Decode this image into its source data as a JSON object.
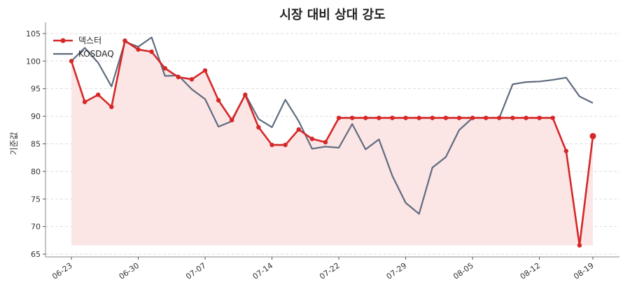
{
  "chart_data": {
    "type": "line",
    "title": "시장 대비 상대 강도",
    "xlabel": "",
    "ylabel": "기준값",
    "ylim": [
      64.5,
      106
    ],
    "y_ticks": [
      65,
      70,
      75,
      80,
      85,
      90,
      95,
      100,
      105
    ],
    "x_tick_labels": [
      "06-23",
      "06-30",
      "07-07",
      "07-14",
      "07-22",
      "07-29",
      "08-05",
      "08-12",
      "08-19"
    ],
    "x_tick_indices": [
      0,
      5,
      10,
      15,
      20,
      25,
      30,
      35,
      39
    ],
    "grid": "horizontal-dashed",
    "legend_position": "top-left",
    "shaded_area": "under-first-series",
    "colors": {
      "series1": "#d62728",
      "series2": "#5f6b7e",
      "fill": "#fbe5e5"
    },
    "series": [
      {
        "name": "덱스터",
        "markers": true,
        "values": [
          100,
          92.6,
          93.9,
          91.7,
          103.7,
          102.1,
          101.7,
          98.7,
          97.1,
          96.7,
          98.3,
          92.9,
          89.3,
          93.9,
          88.0,
          84.8,
          84.8,
          87.6,
          85.9,
          85.3,
          89.7,
          89.7,
          89.7,
          89.7,
          89.7,
          89.7,
          89.7,
          89.7,
          89.7,
          89.7,
          89.7,
          89.7,
          89.7,
          89.7,
          89.7,
          89.7,
          89.7,
          83.7,
          66.6,
          86.4
        ]
      },
      {
        "name": "KOSDAQ",
        "markers": false,
        "values": [
          100,
          102.4,
          99.7,
          95.4,
          103.5,
          102.6,
          104.3,
          97.3,
          97.4,
          94.9,
          93.1,
          88.1,
          89.1,
          94.0,
          89.5,
          88.0,
          93.0,
          89.1,
          84.1,
          84.5,
          84.3,
          88.6,
          84.0,
          85.8,
          79.2,
          74.3,
          72.3,
          80.7,
          82.6,
          87.5,
          89.7,
          89.7,
          89.7,
          95.8,
          96.2,
          96.3,
          96.6,
          97.0,
          93.6,
          92.4
        ]
      }
    ]
  }
}
